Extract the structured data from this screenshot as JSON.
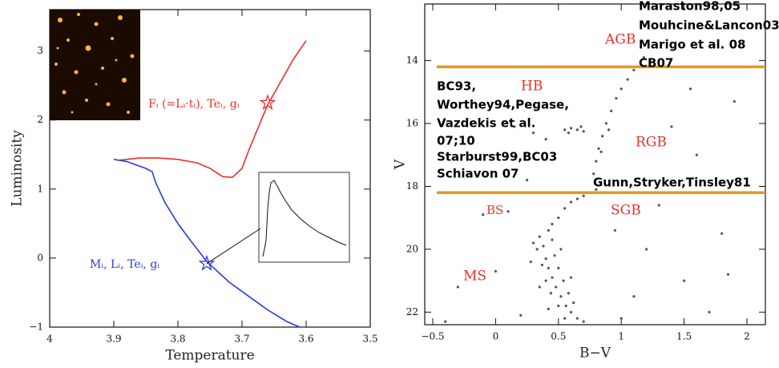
{
  "chart_data": [
    {
      "type": "line",
      "x_label": "Temperature",
      "y_label": "Luminosity",
      "xlim": [
        4,
        3.5
      ],
      "ylim": [
        -1,
        3.6
      ],
      "xticks": [
        4,
        3.9,
        3.8,
        3.7,
        3.6,
        3.5
      ],
      "yticks": [
        {
          "value": -1,
          "label": "−1"
        },
        0,
        1,
        2,
        3
      ],
      "series": [
        {
          "color": "#e8302a",
          "x": [
            3.89,
            3.86,
            3.83,
            3.8,
            3.77,
            3.75,
            3.73,
            3.715,
            3.7,
            3.69,
            3.67,
            3.66,
            3.64,
            3.62,
            3.6
          ],
          "values": [
            1.42,
            1.45,
            1.45,
            1.43,
            1.38,
            1.3,
            1.18,
            1.17,
            1.3,
            1.55,
            2.0,
            2.22,
            2.55,
            2.88,
            3.15
          ]
        },
        {
          "color": "#2a3be0",
          "x": [
            3.9,
            3.88,
            3.865,
            3.85,
            3.84,
            3.835,
            3.82,
            3.8,
            3.78,
            3.755,
            3.72,
            3.69,
            3.66,
            3.63,
            3.61
          ],
          "values": [
            1.43,
            1.4,
            1.35,
            1.3,
            1.25,
            1.1,
            0.8,
            0.5,
            0.25,
            -0.05,
            -0.35,
            -0.55,
            -0.75,
            -0.92,
            -1.0
          ]
        }
      ],
      "markers": [
        {
          "x": 3.66,
          "y": 2.25,
          "color": "#e8302a"
        },
        {
          "x": 3.755,
          "y": -0.08,
          "color": "#2a3be0"
        }
      ],
      "annotations": [
        {
          "text": "Fᵢ (=Lᵢ·tᵢ), Teᵢ, gᵢ",
          "color": "#e8302a"
        },
        {
          "text": "Mᵢ, Lᵢ, Teᵢ, gᵢ",
          "color": "#2a3be0"
        }
      ]
    },
    {
      "type": "scatter",
      "x_label": "B−V",
      "y_label": "V",
      "xlim": [
        -0.5,
        2
      ],
      "ylim": [
        22.4,
        12.2
      ],
      "xticks": [
        {
          "value": -0.5,
          "label": "−0.5"
        },
        0,
        0.5,
        1,
        1.5,
        2
      ],
      "yticks": [
        14,
        16,
        18,
        20,
        22
      ],
      "series": [
        {
          "color": "#555555",
          "x": [
            0.35,
            0.38,
            0.4,
            0.42,
            0.45,
            0.48,
            0.52,
            0.56,
            0.6,
            0.65,
            0.42,
            0.45,
            0.5,
            0.33,
            0.37,
            0.4,
            0.44,
            0.5,
            0.55,
            0.47,
            0.5,
            0.54,
            0.58,
            0.62,
            0.3,
            0.28,
            0.35,
            0.42,
            0.7,
            0.52,
            0.45,
            0.6,
            0.55,
            0.6,
            0.65,
            0.7,
            0.75,
            0.8,
            0.78,
            0.8,
            0.82,
            0.85,
            0.88,
            0.92,
            0.96,
            1.0,
            1.05,
            1.1,
            1.18,
            0.84,
            0.9,
            0.55,
            0.6,
            0.65,
            0.7,
            0.58,
            0.68,
            0.15,
            0.3,
            0.4,
            -0.3,
            0.0,
            0.2,
            -0.1,
            1.2,
            1.5,
            1.8,
            1.6,
            1.4,
            1.9,
            1.3,
            1.7,
            1.1,
            0.95,
            1.0,
            1.55,
            -0.4,
            0.25,
            0.1,
            1.85
          ],
          "values": [
            19.6,
            19.9,
            20.3,
            20.6,
            20.9,
            21.2,
            21.5,
            21.8,
            22.0,
            22.2,
            19.4,
            19.2,
            19.0,
            20.0,
            20.5,
            21.0,
            21.4,
            21.8,
            22.2,
            20.2,
            20.6,
            21.0,
            21.4,
            21.7,
            19.8,
            20.4,
            21.2,
            21.9,
            22.3,
            20.0,
            19.7,
            20.9,
            18.7,
            18.5,
            18.4,
            18.3,
            18.2,
            18.1,
            17.6,
            17.2,
            16.8,
            16.4,
            16.0,
            15.6,
            15.2,
            14.9,
            14.6,
            14.3,
            13.9,
            16.9,
            16.2,
            16.2,
            16.15,
            16.2,
            16.25,
            16.3,
            16.1,
            16.1,
            16.3,
            16.5,
            21.2,
            20.7,
            22.1,
            18.9,
            20.0,
            21.0,
            19.5,
            17.0,
            16.1,
            15.3,
            18.6,
            22.0,
            21.5,
            19.4,
            22.2,
            14.9,
            22.3,
            17.8,
            18.8,
            20.8
          ]
        }
      ],
      "reference_lines": {
        "values": [
          14.2,
          18.2
        ],
        "color": "#e8951f"
      },
      "annotations": [
        {
          "text": "AGB",
          "color": "#e8302a"
        },
        {
          "text": "HB",
          "color": "#e8302a"
        },
        {
          "text": "RGB",
          "color": "#e8302a"
        },
        {
          "text": "BS",
          "color": "#e8302a"
        },
        {
          "text": "SGB",
          "color": "#e8302a"
        },
        {
          "text": "MS",
          "color": "#e8302a"
        },
        {
          "text": "Maraston98,05",
          "color": "#000000"
        },
        {
          "text": "Mouhcine&Lancon03",
          "color": "#000000"
        },
        {
          "text": "Marigo et al. 08",
          "color": "#000000"
        },
        {
          "text": "CB07",
          "color": "#000000"
        },
        {
          "text": "BC93,",
          "color": "#000000"
        },
        {
          "text": "Worthey94,Pegase,",
          "color": "#000000"
        },
        {
          "text": "Vazdekis et al.",
          "color": "#000000"
        },
        {
          "text": "07;10",
          "color": "#000000"
        },
        {
          "text": "Starburst99,BC03",
          "color": "#000000"
        },
        {
          "text": "Schiavon 07",
          "color": "#000000"
        },
        {
          "text": "Gunn,Stryker,Tinsley81",
          "color": "#000000"
        }
      ]
    }
  ]
}
